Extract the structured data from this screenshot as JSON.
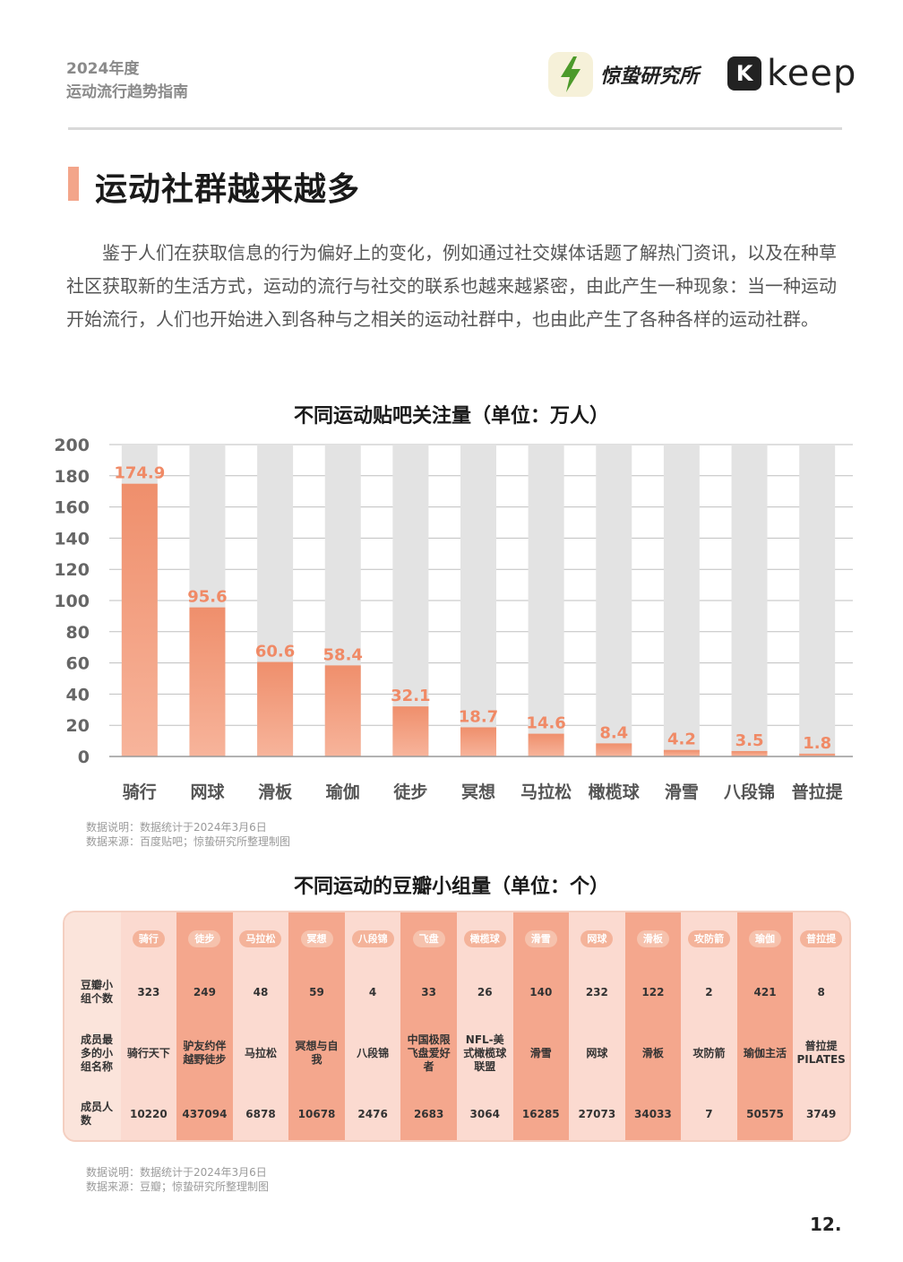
{
  "header": {
    "year": "2024年度",
    "subtitle": "运动流行趋势指南",
    "logo_jingzhi": "惊蛰研究所",
    "logo_keep_mark": "K",
    "logo_keep": "keep"
  },
  "page_title": "运动社群越来越多",
  "intro": "鉴于人们在获取信息的行为偏好上的变化，例如通过社交媒体话题了解热门资讯，以及在种草社区获取新的生活方式，运动的流行与社交的联系也越来越紧密，由此产生一种现象：当一种运动开始流行，人们也开始进入到各种与之相关的运动社群中，也由此产生了各种各样的运动社群。",
  "chart_data": {
    "type": "bar",
    "title": "不同运动贴吧关注量（单位：万人）",
    "categories": [
      "骑行",
      "网球",
      "滑板",
      "瑜伽",
      "徒步",
      "冥想",
      "马拉松",
      "橄榄球",
      "滑雪",
      "八段锦",
      "普拉提"
    ],
    "values": [
      174.9,
      95.6,
      60.6,
      58.4,
      32.1,
      18.7,
      14.6,
      8.4,
      4.2,
      3.5,
      1.8
    ],
    "value_labels": [
      "174.9",
      "95.6",
      "60.6",
      "58.4",
      "32.1",
      "18.7",
      "14.6",
      "8.4",
      "4.2",
      "3.5",
      "1.8"
    ],
    "yticks": [
      "0",
      "20",
      "40",
      "60",
      "80",
      "100",
      "120",
      "140",
      "160",
      "180",
      "200"
    ],
    "ylim": [
      0,
      200
    ],
    "xlabel": "",
    "ylabel": "",
    "colors": {
      "bar": "#ef8f6c",
      "bar_top": "#f7b49b",
      "track": "#e3e3e3",
      "label": "#f08a66",
      "grid": "#bfbfbf"
    }
  },
  "chart1_notes": {
    "line1": "数据说明：数据统计于2024年3月6日",
    "line2": "数据来源：百度贴吧；惊蛰研究所整理制图"
  },
  "table": {
    "title": "不同运动的豆瓣小组量（单位：个）",
    "columns": [
      "骑行",
      "徒步",
      "马拉松",
      "冥想",
      "八段锦",
      "飞盘",
      "橄榄球",
      "滑雪",
      "网球",
      "滑板",
      "攻防箭",
      "瑜伽",
      "普拉提"
    ],
    "row_labels": [
      "豆瓣小组个数",
      "成员最多的小组名称",
      "成员人数"
    ],
    "group_counts": [
      "323",
      "249",
      "48",
      "59",
      "4",
      "33",
      "26",
      "140",
      "232",
      "122",
      "2",
      "421",
      "8"
    ],
    "top_groups": [
      "骑行天下",
      "驴友约伴越野徒步",
      "马拉松",
      "冥想与自我",
      "八段锦",
      "中国极限飞盘爱好者",
      "NFL-美式橄榄球联盟",
      "滑雪",
      "网球",
      "滑板",
      "攻防箭",
      "瑜伽主活",
      "普拉提PILATES"
    ],
    "member_counts": [
      "10220",
      "437094",
      "6878",
      "10678",
      "2476",
      "2683",
      "3064",
      "16285",
      "27073",
      "34033",
      "7",
      "50575",
      "3749"
    ]
  },
  "table_notes": {
    "line1": "数据说明：数据统计于2024年3月6日",
    "line2": "数据来源：豆瓣；惊蛰研究所整理制图"
  },
  "page_number": "12."
}
